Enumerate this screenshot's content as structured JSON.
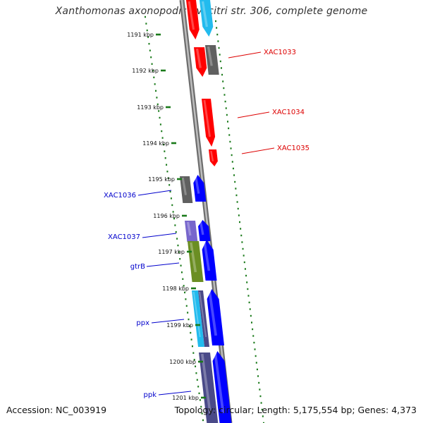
{
  "title": "Xanthomonas axonopodis pv. citri str. 306, complete genome",
  "footer": {
    "accession": "Accession: NC_003919",
    "stats": "Topology: circular; Length: 5,175,554 bp; Genes: 4,373"
  },
  "colors": {
    "forward_label": "#0000cc",
    "reverse_label": "#dd0000",
    "backbone": "#808080",
    "kbp_ticks": "#1a7a1a",
    "gc_dots": "#1a7a1a",
    "red_gene": "#ff0000",
    "blue_gene": "#0000ff",
    "gray_gene": "#606060",
    "cyan_gene": "#22bbee",
    "olive_gene": "#6b8e23",
    "purple_gene": "#7766cc",
    "navy_gene": "#4a4a88"
  },
  "kbp_labels": [
    "1191 kbp",
    "1192 kbp",
    "1193 kbp",
    "1194 kbp",
    "1195 kbp",
    "1196 kbp",
    "1197 kbp",
    "1198 kbp",
    "1199 kbp",
    "1200 kbp",
    "1201 kbp"
  ],
  "gene_labels": [
    {
      "text": "XAC1033",
      "strand": "reverse"
    },
    {
      "text": "XAC1034",
      "strand": "reverse"
    },
    {
      "text": "XAC1035",
      "strand": "reverse"
    },
    {
      "text": "XAC1036",
      "strand": "forward"
    },
    {
      "text": "XAC1037",
      "strand": "forward"
    },
    {
      "text": "gtrB",
      "strand": "forward"
    },
    {
      "text": "ppx",
      "strand": "forward"
    },
    {
      "text": "ppk",
      "strand": "forward"
    }
  ]
}
